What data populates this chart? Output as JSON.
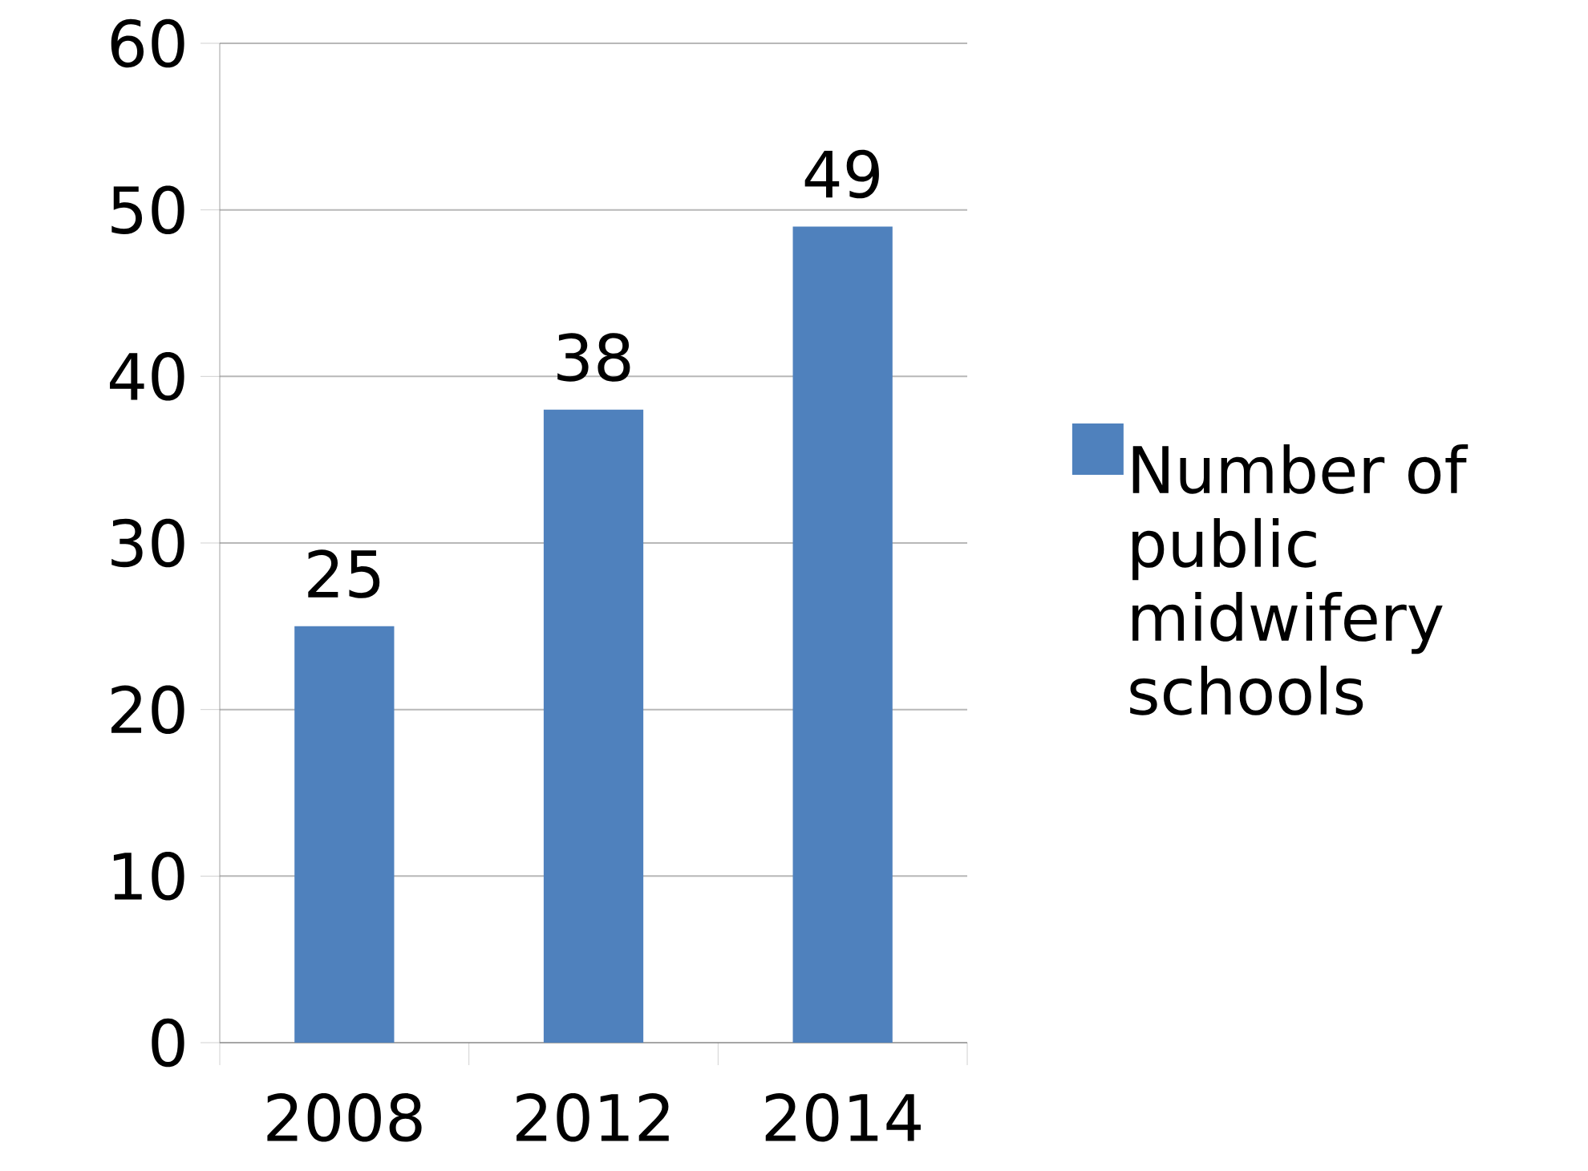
{
  "chart_data": {
    "type": "bar",
    "categories": [
      "2008",
      "2012",
      "2014"
    ],
    "series": [
      {
        "name": "Number of public midwifery schools",
        "color": "#4f81bd",
        "values": [
          25,
          38,
          49
        ]
      }
    ],
    "ylim": [
      0,
      60
    ],
    "yticks": [
      0,
      10,
      20,
      30,
      40,
      50,
      60
    ],
    "grid": "y",
    "legend": "right",
    "data_labels": true
  }
}
